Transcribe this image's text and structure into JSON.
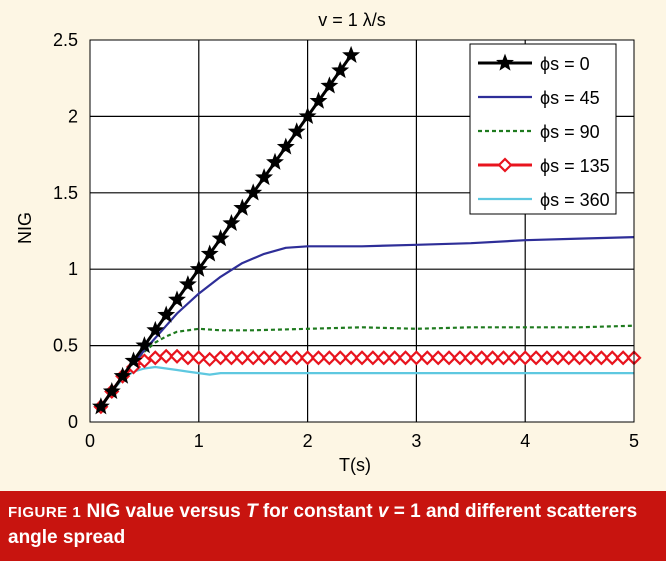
{
  "chart_data": {
    "type": "line",
    "title": "v = 1 λ/s",
    "xlabel": "T(s)",
    "ylabel": "NIG",
    "xlim": [
      0,
      5
    ],
    "ylim": [
      0,
      2.5
    ],
    "xticks": [
      "0",
      "1",
      "2",
      "3",
      "4",
      "5"
    ],
    "yticks": [
      "0",
      "0.5",
      "1",
      "1.5",
      "2",
      "2.5"
    ],
    "grid": true,
    "legend_position": "top-right",
    "series": [
      {
        "name": "ϕs = 0",
        "color": "#000000",
        "marker": "star",
        "x": [
          0.1,
          0.2,
          0.3,
          0.4,
          0.5,
          0.6,
          0.7,
          0.8,
          0.9,
          1.0,
          1.1,
          1.2,
          1.3,
          1.4,
          1.5,
          1.6,
          1.7,
          1.8,
          1.9,
          2.0,
          2.1,
          2.2,
          2.3,
          2.4
        ],
        "y": [
          0.1,
          0.2,
          0.3,
          0.4,
          0.5,
          0.6,
          0.7,
          0.8,
          0.9,
          1.0,
          1.1,
          1.2,
          1.3,
          1.4,
          1.5,
          1.6,
          1.7,
          1.8,
          1.9,
          2.0,
          2.1,
          2.2,
          2.3,
          2.4
        ]
      },
      {
        "name": "ϕs = 45",
        "color": "#2e2e98",
        "marker": "none",
        "x": [
          0.1,
          0.2,
          0.3,
          0.4,
          0.5,
          0.6,
          0.7,
          0.8,
          1.0,
          1.2,
          1.4,
          1.6,
          1.8,
          2.0,
          2.5,
          3.0,
          3.5,
          4.0,
          4.5,
          5.0
        ],
        "y": [
          0.1,
          0.2,
          0.3,
          0.38,
          0.47,
          0.55,
          0.63,
          0.71,
          0.84,
          0.95,
          1.04,
          1.1,
          1.14,
          1.15,
          1.15,
          1.16,
          1.17,
          1.19,
          1.2,
          1.21
        ]
      },
      {
        "name": "ϕs = 90",
        "color": "#1e7a1e",
        "marker": "none",
        "dash": "4,3",
        "x": [
          0.1,
          0.2,
          0.3,
          0.4,
          0.5,
          0.6,
          0.7,
          0.8,
          1.0,
          1.2,
          1.5,
          2.0,
          2.5,
          3.0,
          3.5,
          4.0,
          4.5,
          5.0
        ],
        "y": [
          0.1,
          0.2,
          0.3,
          0.39,
          0.46,
          0.52,
          0.56,
          0.59,
          0.61,
          0.6,
          0.6,
          0.61,
          0.62,
          0.61,
          0.62,
          0.62,
          0.62,
          0.63
        ]
      },
      {
        "name": "ϕs = 135",
        "color": "#e8141e",
        "marker": "diamond",
        "x": [
          0.1,
          0.2,
          0.3,
          0.4,
          0.5,
          0.6,
          0.7,
          0.8,
          0.9,
          1.0,
          1.1,
          1.2,
          1.3,
          1.4,
          1.5,
          1.6,
          1.7,
          1.8,
          1.9,
          2.0,
          2.1,
          2.2,
          2.3,
          2.4,
          2.5,
          2.6,
          2.7,
          2.8,
          2.9,
          3.0,
          3.1,
          3.2,
          3.3,
          3.4,
          3.5,
          3.6,
          3.7,
          3.8,
          3.9,
          4.0,
          4.1,
          4.2,
          4.3,
          4.4,
          4.5,
          4.6,
          4.7,
          4.8,
          4.9,
          5.0
        ],
        "y": [
          0.1,
          0.2,
          0.3,
          0.36,
          0.4,
          0.42,
          0.43,
          0.43,
          0.42,
          0.42,
          0.41,
          0.42,
          0.42,
          0.42,
          0.42,
          0.42,
          0.42,
          0.42,
          0.42,
          0.42,
          0.42,
          0.42,
          0.42,
          0.42,
          0.42,
          0.42,
          0.42,
          0.42,
          0.42,
          0.42,
          0.42,
          0.42,
          0.42,
          0.42,
          0.42,
          0.42,
          0.42,
          0.42,
          0.42,
          0.42,
          0.42,
          0.42,
          0.42,
          0.42,
          0.42,
          0.42,
          0.42,
          0.42,
          0.42,
          0.42
        ]
      },
      {
        "name": "ϕs = 360",
        "color": "#5ec8e0",
        "marker": "none",
        "x": [
          0.1,
          0.2,
          0.3,
          0.4,
          0.5,
          0.6,
          0.7,
          0.8,
          0.9,
          1.0,
          1.1,
          1.2,
          1.5,
          2.0,
          2.5,
          3.0,
          3.5,
          4.0,
          4.5,
          5.0
        ],
        "y": [
          0.1,
          0.2,
          0.28,
          0.33,
          0.35,
          0.36,
          0.35,
          0.34,
          0.33,
          0.32,
          0.31,
          0.32,
          0.32,
          0.32,
          0.32,
          0.32,
          0.32,
          0.32,
          0.32,
          0.32
        ]
      }
    ]
  },
  "caption": {
    "figure_label": "FIGURE 1",
    "text_before": " NIG value versus ",
    "italic_T": "T",
    "text_middle": " for constant ",
    "italic_v": "v",
    "text_after": " = 1 and different scatterers angle spread"
  }
}
